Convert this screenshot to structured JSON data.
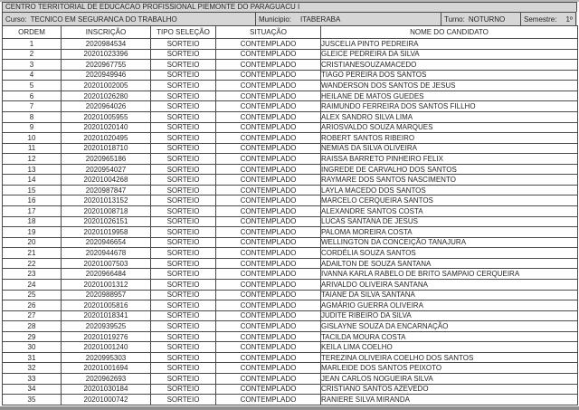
{
  "header": {
    "title": "CENTRO TERRITORIAL DE EDUCACAO PROFISSIONAL PIEMONTE DO PARAGUACU I",
    "curso_label": "Curso:",
    "curso_value": "TECNICO EM SEGURANCA DO TRABALHO",
    "municipio_label": "Municipio:",
    "municipio_value": "ITABERABA",
    "turno_label": "Turno:",
    "turno_value": "NOTURNO",
    "semestre_label": "Semestre:",
    "semestre_value": "1º"
  },
  "table": {
    "columns": [
      "ORDEM",
      "INSCRIÇÃO",
      "TIPO SELEÇÃO",
      "SITUAÇÃO",
      "NOME DO CANDIDATO"
    ],
    "rows": [
      [
        "1",
        "2020984534",
        "SORTEIO",
        "CONTEMPLADO",
        "JUSCELIA PINTO PEDREIRA"
      ],
      [
        "2",
        "20201023396",
        "SORTEIO",
        "CONTEMPLADO",
        "GLEICE PEDREIRA DA SILVA"
      ],
      [
        "3",
        "2020967755",
        "SORTEIO",
        "CONTEMPLADO",
        "CRISTIANESOUZAMACEDO"
      ],
      [
        "4",
        "2020949946",
        "SORTEIO",
        "CONTEMPLADO",
        "TIAGO PEREIRA DOS SANTOS"
      ],
      [
        "5",
        "20201002005",
        "SORTEIO",
        "CONTEMPLADO",
        "WANDERSON DOS SANTOS DE JESUS"
      ],
      [
        "6",
        "20201026280",
        "SORTEIO",
        "CONTEMPLADO",
        "HEILANE DE MATOS GUEDES"
      ],
      [
        "7",
        "2020964026",
        "SORTEIO",
        "CONTEMPLADO",
        "RAIMUNDO FERREIRA DOS SANTOS FILLHO"
      ],
      [
        "8",
        "20201005955",
        "SORTEIO",
        "CONTEMPLADO",
        "ALEX SANDRO SILVA LIMA"
      ],
      [
        "9",
        "20201020140",
        "SORTEIO",
        "CONTEMPLADO",
        "ARIOSVALDO SOUZA MARQUES"
      ],
      [
        "10",
        "20201020495",
        "SORTEIO",
        "CONTEMPLADO",
        "ROBERT SANTOS RIBEIRO"
      ],
      [
        "11",
        "20201018710",
        "SORTEIO",
        "CONTEMPLADO",
        "NEMIAS DA SILVA OLIVEIRA"
      ],
      [
        "12",
        "2020965186",
        "SORTEIO",
        "CONTEMPLADO",
        "RAISSA BARRETO PINHEIRO FELIX"
      ],
      [
        "13",
        "2020954027",
        "SORTEIO",
        "CONTEMPLADO",
        "INGREDE DE CARVALHO DOS SANTOS"
      ],
      [
        "14",
        "20201004268",
        "SORTEIO",
        "CONTEMPLADO",
        "RAYMARE DOS SANTOS NASCIMENTO"
      ],
      [
        "15",
        "2020987847",
        "SORTEIO",
        "CONTEMPLADO",
        "LAYLA MACEDO DOS SANTOS"
      ],
      [
        "16",
        "20201013152",
        "SORTEIO",
        "CONTEMPLADO",
        "MARCELO CERQUEIRA SANTOS"
      ],
      [
        "17",
        "20201008718",
        "SORTEIO",
        "CONTEMPLADO",
        "ALEXANDRE SANTOS COSTA"
      ],
      [
        "18",
        "20201026151",
        "SORTEIO",
        "CONTEMPLADO",
        "LUCAS SANTANA DE JESUS"
      ],
      [
        "19",
        "20201019958",
        "SORTEIO",
        "CONTEMPLADO",
        "PALOMA MOREIRA COSTA"
      ],
      [
        "20",
        "2020946654",
        "SORTEIO",
        "CONTEMPLADO",
        "WELLINGTON DA CONCEIÇÃO TANAJURA"
      ],
      [
        "21",
        "2020944678",
        "SORTEIO",
        "CONTEMPLADO",
        "CORDÉLIA SOUZA SANTOS"
      ],
      [
        "22",
        "20201007503",
        "SORTEIO",
        "CONTEMPLADO",
        "ADAILTON DE SOUZA SANTANA"
      ],
      [
        "23",
        "2020966484",
        "SORTEIO",
        "CONTEMPLADO",
        "IVANNA KARLA RABELO DE BRITO SAMPAIO CERQUEIRA"
      ],
      [
        "24",
        "20201001312",
        "SORTEIO",
        "CONTEMPLADO",
        "ARIVALDO OLIVEIRA SANTANA"
      ],
      [
        "25",
        "2020988957",
        "SORTEIO",
        "CONTEMPLADO",
        "TAIANE DA SILVA SANTANA"
      ],
      [
        "26",
        "20201005816",
        "SORTEIO",
        "CONTEMPLADO",
        "AGMÁRIO GUERRA OLIVEIRA"
      ],
      [
        "27",
        "20201018341",
        "SORTEIO",
        "CONTEMPLADO",
        "JUDITE RIBEIRO DA SILVA"
      ],
      [
        "28",
        "2020939525",
        "SORTEIO",
        "CONTEMPLADO",
        "GISLAYNE SOUZA DA ENCARNAÇÃO"
      ],
      [
        "29",
        "20201019276",
        "SORTEIO",
        "CONTEMPLADO",
        "TACILDA MOURA COSTA"
      ],
      [
        "30",
        "20201001240",
        "SORTEIO",
        "CONTEMPLADO",
        "KEILA LIMA COELHO"
      ],
      [
        "31",
        "2020995303",
        "SORTEIO",
        "CONTEMPLADO",
        "TEREZINA OLIVEIRA COELHO DOS SANTOS"
      ],
      [
        "32",
        "20201001694",
        "SORTEIO",
        "CONTEMPLADO",
        "MARLEIDE DOS SANTOS PEIXOTO"
      ],
      [
        "33",
        "2020962693",
        "SORTEIO",
        "CONTEMPLADO",
        "JEAN CARLOS NOGUEIRA SILVA"
      ],
      [
        "34",
        "20201030184",
        "SORTEIO",
        "CONTEMPLADO",
        "CRISTIANO SANTOS AZEVEDO"
      ],
      [
        "35",
        "20201000742",
        "SORTEIO",
        "CONTEMPLADO",
        "RANIERE SILVA MIRANDA"
      ]
    ]
  },
  "colors": {
    "header_bg": "#d6d6d6",
    "row_bg": "#ffffff",
    "border": "#4a4a4a",
    "text": "#262626",
    "bottom_strip": "#8f8f8f"
  }
}
